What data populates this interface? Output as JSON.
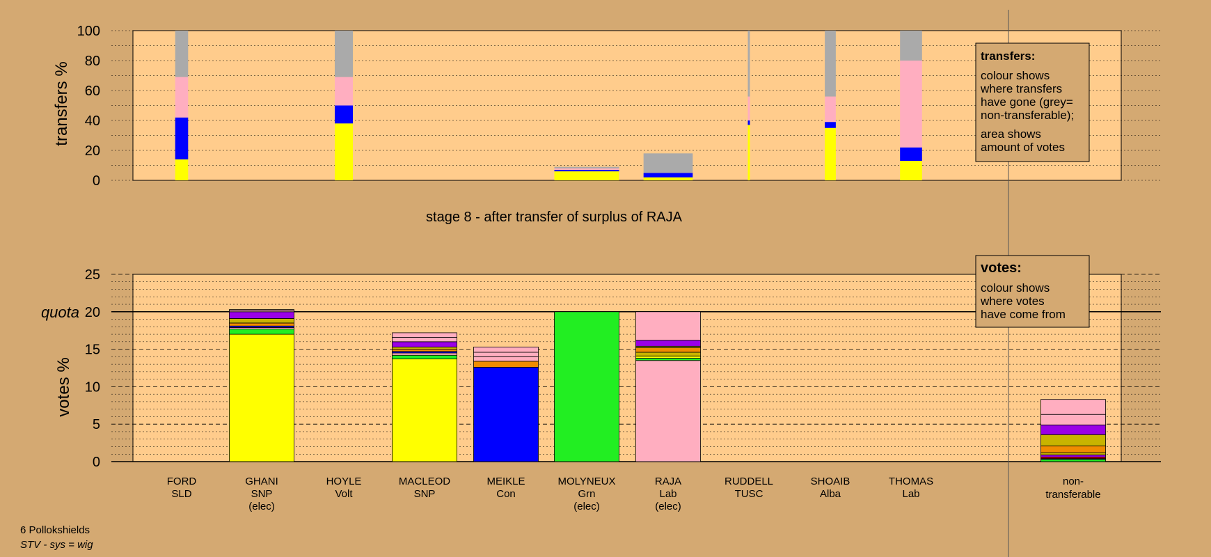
{
  "colors": {
    "background": "#D4A972",
    "plot_area": "#FFCC8C",
    "SNP": "#FFFF00",
    "Con": "#0000FF",
    "Grn": "#22EE22",
    "Lab": "#FFAEC0",
    "Alba": "#9A00E6",
    "Orange": "#F08C00",
    "Olive": "#C8B400",
    "Red": "#CC0000",
    "Teal": "#00A0A0",
    "non_transferable": "#AAAAAA"
  },
  "top": {
    "ylabel": "transfers %",
    "ticks": [
      "0",
      "20",
      "40",
      "60",
      "80",
      "100"
    ],
    "stage_title": "stage 8 - after transfer of surplus of RAJA",
    "legend": {
      "title": "transfers:",
      "lines1": [
        "colour shows",
        "where transfers",
        "have gone (grey=",
        "non-transferable);"
      ],
      "lines2": [
        "area shows",
        "amount of votes"
      ]
    }
  },
  "bottom": {
    "ylabel": "votes %",
    "quota_label": "quota",
    "ticks": [
      "0",
      "5",
      "10",
      "15",
      "20",
      "25"
    ],
    "legend": {
      "title": "votes:",
      "lines": [
        "colour shows",
        "where votes",
        "have come from"
      ]
    }
  },
  "candidates": [
    {
      "name": "FORD",
      "party": "SLD",
      "status": ""
    },
    {
      "name": "GHANI",
      "party": "SNP",
      "status": "(elec)"
    },
    {
      "name": "HOYLE",
      "party": "Volt",
      "status": ""
    },
    {
      "name": "MACLEOD",
      "party": "SNP",
      "status": ""
    },
    {
      "name": "MEIKLE",
      "party": "Con",
      "status": ""
    },
    {
      "name": "MOLYNEUX",
      "party": "Grn",
      "status": "(elec)"
    },
    {
      "name": "RAJA",
      "party": "Lab",
      "status": "(elec)"
    },
    {
      "name": "RUDDELL",
      "party": "TUSC",
      "status": ""
    },
    {
      "name": "SHOAIB",
      "party": "Alba",
      "status": ""
    },
    {
      "name": "THOMAS",
      "party": "Lab",
      "status": ""
    }
  ],
  "nontransferable_label": [
    "non-",
    "transferable"
  ],
  "footer": {
    "ward": "6 Pollokshields",
    "system": "STV - sys = wig"
  },
  "chart_data": [
    {
      "type": "bar",
      "title": "",
      "ylabel": "transfers %",
      "ylim": [
        0,
        100
      ],
      "grid": true,
      "categories": [
        "FORD",
        "GHANI",
        "HOYLE",
        "MACLEOD",
        "MEIKLE",
        "MOLYNEUX",
        "RAJA",
        "RUDDELL",
        "SHOAIB",
        "THOMAS"
      ],
      "bars": [
        {
          "candidate": "FORD",
          "width_pct": 20,
          "segments": [
            {
              "party": "SNP",
              "value": 14
            },
            {
              "party": "Con",
              "value": 28
            },
            {
              "party": "Lab",
              "value": 27
            },
            {
              "party": "non_transferable",
              "value": 31
            }
          ]
        },
        {
          "candidate": "HOYLE",
          "width_pct": 28,
          "segments": [
            {
              "party": "SNP",
              "value": 38
            },
            {
              "party": "Con",
              "value": 12
            },
            {
              "party": "Lab",
              "value": 19
            },
            {
              "party": "non_transferable",
              "value": 31
            }
          ]
        },
        {
          "candidate": "MOLYNEUX",
          "width_pct": 100,
          "segments": [
            {
              "party": "SNP",
              "value": 6
            },
            {
              "party": "Con",
              "value": 1
            },
            {
              "party": "Lab",
              "value": 1
            },
            {
              "party": "non_transferable",
              "value": 1
            }
          ]
        },
        {
          "candidate": "RAJA",
          "width_pct": 76,
          "segments": [
            {
              "party": "SNP",
              "value": 2
            },
            {
              "party": "Con",
              "value": 3
            },
            {
              "party": "non_transferable",
              "value": 13
            }
          ]
        },
        {
          "candidate": "RUDDELL",
          "width_pct": 3,
          "segments": [
            {
              "party": "SNP",
              "value": 37
            },
            {
              "party": "Con",
              "value": 3
            },
            {
              "party": "Lab",
              "value": 16
            },
            {
              "party": "non_transferable",
              "value": 44
            }
          ]
        },
        {
          "candidate": "SHOAIB",
          "width_pct": 17,
          "segments": [
            {
              "party": "SNP",
              "value": 35
            },
            {
              "party": "Con",
              "value": 4
            },
            {
              "party": "Lab",
              "value": 17
            },
            {
              "party": "non_transferable",
              "value": 44
            }
          ]
        },
        {
          "candidate": "THOMAS",
          "width_pct": 34,
          "segments": [
            {
              "party": "SNP",
              "value": 13
            },
            {
              "party": "Con",
              "value": 9
            },
            {
              "party": "Lab",
              "value": 58
            },
            {
              "party": "non_transferable",
              "value": 20
            }
          ]
        }
      ]
    },
    {
      "type": "bar",
      "title": "stage 8 - after transfer of surplus of RAJA",
      "ylabel": "votes %",
      "ylim": [
        0,
        25
      ],
      "quota": 20,
      "grid": true,
      "categories": [
        "FORD",
        "GHANI",
        "HOYLE",
        "MACLEOD",
        "MEIKLE",
        "MOLYNEUX",
        "RAJA",
        "RUDDELL",
        "SHOAIB",
        "THOMAS",
        "non-transferable"
      ],
      "bars": [
        {
          "candidate": "GHANI",
          "segments": [
            {
              "party": "SNP",
              "value": 17.0
            },
            {
              "party": "Grn",
              "value": 0.7
            },
            {
              "party": "Lab",
              "value": 0.2
            },
            {
              "party": "Con",
              "value": 0.2
            },
            {
              "party": "Orange",
              "value": 0.4
            },
            {
              "party": "Olive",
              "value": 0.6
            },
            {
              "party": "Alba",
              "value": 0.9
            },
            {
              "party": "Lab",
              "value": 0.2
            },
            {
              "party": "Lab",
              "value": 0.1
            }
          ]
        },
        {
          "candidate": "MACLEOD",
          "segments": [
            {
              "party": "SNP",
              "value": 13.7
            },
            {
              "party": "Grn",
              "value": 0.5
            },
            {
              "party": "Lab",
              "value": 0.3
            },
            {
              "party": "Con",
              "value": 0.2
            },
            {
              "party": "Orange",
              "value": 0.3
            },
            {
              "party": "Olive",
              "value": 0.3
            },
            {
              "party": "Alba",
              "value": 0.7
            },
            {
              "party": "Lab",
              "value": 0.6
            },
            {
              "party": "Lab",
              "value": 0.6
            }
          ]
        },
        {
          "candidate": "MEIKLE",
          "segments": [
            {
              "party": "Con",
              "value": 12.6
            },
            {
              "party": "Orange",
              "value": 0.8
            },
            {
              "party": "Lab",
              "value": 0.6
            },
            {
              "party": "Lab",
              "value": 0.6
            },
            {
              "party": "Lab",
              "value": 0.7
            }
          ]
        },
        {
          "candidate": "MOLYNEUX",
          "segments": [
            {
              "party": "Grn",
              "value": 20.0
            }
          ]
        },
        {
          "candidate": "RAJA",
          "segments": [
            {
              "party": "Lab",
              "value": 13.5
            },
            {
              "party": "Grn",
              "value": 0.3
            },
            {
              "party": "SNP",
              "value": 0.3
            },
            {
              "party": "Olive",
              "value": 0.5
            },
            {
              "party": "Orange",
              "value": 0.6
            },
            {
              "party": "Olive",
              "value": 0.2
            },
            {
              "party": "Alba",
              "value": 0.8
            },
            {
              "party": "Lab",
              "value": 3.8
            }
          ]
        },
        {
          "candidate": "non-transferable",
          "segments": [
            {
              "party": "Grn",
              "value": 0.3
            },
            {
              "party": "Teal",
              "value": 0.1
            },
            {
              "party": "Red",
              "value": 0.2
            },
            {
              "party": "Alba",
              "value": 0.3
            },
            {
              "party": "Olive",
              "value": 0.3
            },
            {
              "party": "Orange",
              "value": 0.9
            },
            {
              "party": "Olive",
              "value": 1.5
            },
            {
              "party": "Alba",
              "value": 1.3
            },
            {
              "party": "Lab",
              "value": 1.4
            },
            {
              "party": "Lab",
              "value": 2.0
            }
          ]
        }
      ]
    }
  ]
}
